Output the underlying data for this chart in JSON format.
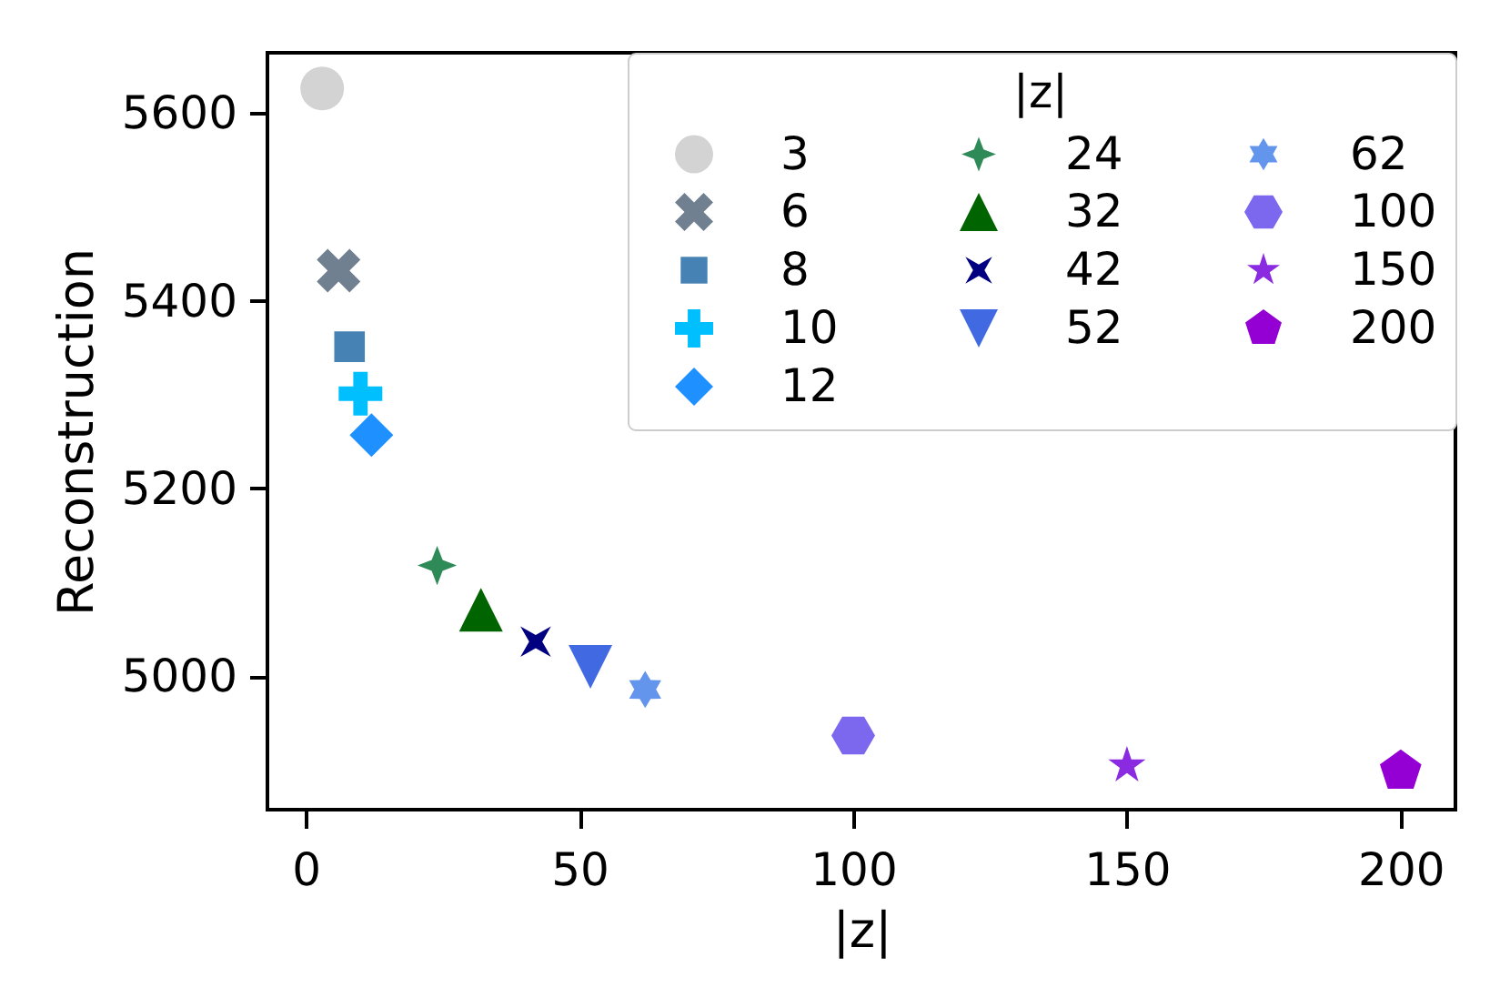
{
  "chart_data": {
    "type": "scatter",
    "xlabel": "|z|",
    "ylabel": "Reconstruction",
    "legend_title": "|z|",
    "legend": "top right",
    "grid": false,
    "xlim": [
      -7,
      210
    ],
    "ylim": [
      4858,
      5664
    ],
    "xticks": [
      0,
      50,
      100,
      150,
      200
    ],
    "yticks": [
      5000,
      5200,
      5400,
      5600
    ],
    "series": [
      {
        "name": "3",
        "color": "#d3d3d3",
        "marker": "circle",
        "x": [
          3
        ],
        "values": [
          5626
        ]
      },
      {
        "name": "6",
        "color": "#708090",
        "marker": "x",
        "x": [
          6
        ],
        "values": [
          5432
        ]
      },
      {
        "name": "8",
        "color": "#4682b4",
        "marker": "square",
        "x": [
          8
        ],
        "values": [
          5351
        ]
      },
      {
        "name": "10",
        "color": "#00bfff",
        "marker": "plus",
        "x": [
          10
        ],
        "values": [
          5301
        ]
      },
      {
        "name": "12",
        "color": "#1e90ff",
        "marker": "diamond",
        "x": [
          12
        ],
        "values": [
          5257
        ]
      },
      {
        "name": "24",
        "color": "#2e8b57",
        "marker": "star4",
        "x": [
          24
        ],
        "values": [
          5118
        ]
      },
      {
        "name": "32",
        "color": "#006400",
        "marker": "triangle",
        "x": [
          32
        ],
        "values": [
          5071
        ]
      },
      {
        "name": "42",
        "color": "#000080",
        "marker": "star4x",
        "x": [
          42
        ],
        "values": [
          5037
        ]
      },
      {
        "name": "52",
        "color": "#4169e1",
        "marker": "triangle-down",
        "x": [
          52
        ],
        "values": [
          5010
        ]
      },
      {
        "name": "62",
        "color": "#6495ed",
        "x": [
          62
        ],
        "values": [
          4986
        ]
      },
      {
        "name": "100",
        "color": "#7b68ee",
        "x": [
          100
        ],
        "values": [
          4937
        ]
      },
      {
        "name": "150",
        "color": "#8a2be2",
        "marker": "star",
        "x": [
          150
        ],
        "values": [
          4905
        ]
      },
      {
        "name": "200",
        "color": "#9400d3",
        "x": [
          200
        ],
        "values": [
          4899
        ]
      }
    ]
  }
}
